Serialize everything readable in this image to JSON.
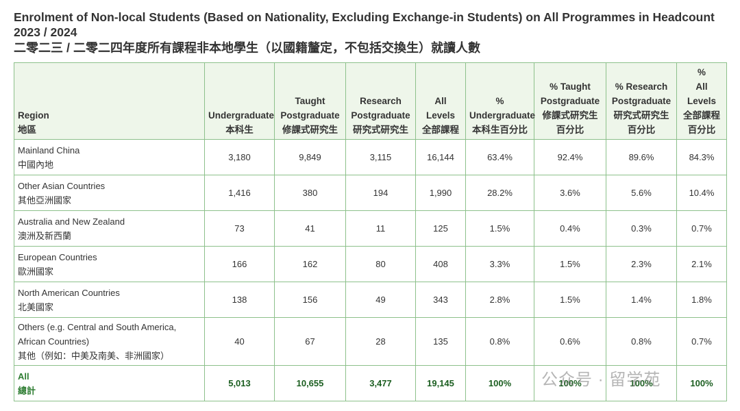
{
  "header": {
    "title": "Enrolment of Non-local Students (Based on Nationality, Excluding Exchange-in Students) on All Programmes in Headcount 2023 / 2024",
    "subtitle": "二零二三 / 二零二四年度所有課程非本地學生（以國籍釐定，不包括交換生）就讀人數"
  },
  "table": {
    "columns": [
      {
        "en": [
          "Region"
        ],
        "zh": [
          "地區"
        ]
      },
      {
        "en": [
          "Undergraduate"
        ],
        "zh": [
          "本科生"
        ]
      },
      {
        "en": [
          "Taught",
          "Postgraduate"
        ],
        "zh": [
          "修課式研究生"
        ]
      },
      {
        "en": [
          "Research",
          "Postgraduate"
        ],
        "zh": [
          "研究式研究生"
        ]
      },
      {
        "en": [
          "All Levels"
        ],
        "zh": [
          "全部課程"
        ]
      },
      {
        "en": [
          "%",
          "Undergraduate"
        ],
        "zh": [
          "本科生百分比"
        ]
      },
      {
        "en": [
          "% Taught",
          "Postgraduate"
        ],
        "zh": [
          "修課式研究生",
          "百分比"
        ]
      },
      {
        "en": [
          "% Research",
          "Postgraduate"
        ],
        "zh": [
          "研究式研究生",
          "百分比"
        ]
      },
      {
        "en": [
          "%",
          "All Levels"
        ],
        "zh": [
          "全部課程",
          "百分比"
        ]
      }
    ],
    "rows": [
      {
        "region": {
          "en": "Mainland China",
          "zh": "中國內地"
        },
        "cells": [
          "3,180",
          "9,849",
          "3,115",
          "16,144",
          "63.4%",
          "92.4%",
          "89.6%",
          "84.3%"
        ]
      },
      {
        "region": {
          "en": "Other Asian Countries",
          "zh": "其他亞洲國家"
        },
        "cells": [
          "1,416",
          "380",
          "194",
          "1,990",
          "28.2%",
          "3.6%",
          "5.6%",
          "10.4%"
        ]
      },
      {
        "region": {
          "en": "Australia and New Zealand",
          "zh": "澳洲及新西蘭"
        },
        "cells": [
          "73",
          "41",
          "11",
          "125",
          "1.5%",
          "0.4%",
          "0.3%",
          "0.7%"
        ]
      },
      {
        "region": {
          "en": "European Countries",
          "zh": "歐洲國家"
        },
        "cells": [
          "166",
          "162",
          "80",
          "408",
          "3.3%",
          "1.5%",
          "2.3%",
          "2.1%"
        ]
      },
      {
        "region": {
          "en": "North American Countries",
          "zh": "北美國家"
        },
        "cells": [
          "138",
          "156",
          "49",
          "343",
          "2.8%",
          "1.5%",
          "1.4%",
          "1.8%"
        ]
      },
      {
        "region": {
          "en": "Others (e.g. Central and South America, African Countries)",
          "zh": "其他（例如：中美及南美、非洲國家）"
        },
        "cells": [
          "40",
          "67",
          "28",
          "135",
          "0.8%",
          "0.6%",
          "0.8%",
          "0.7%"
        ]
      }
    ],
    "total": {
      "region": {
        "en": "All",
        "zh": "總計"
      },
      "cells": [
        "5,013",
        "10,655",
        "3,477",
        "19,145",
        "100%",
        "100%",
        "100%",
        "100%"
      ]
    }
  },
  "watermark": "公众号 · 留学苑"
}
